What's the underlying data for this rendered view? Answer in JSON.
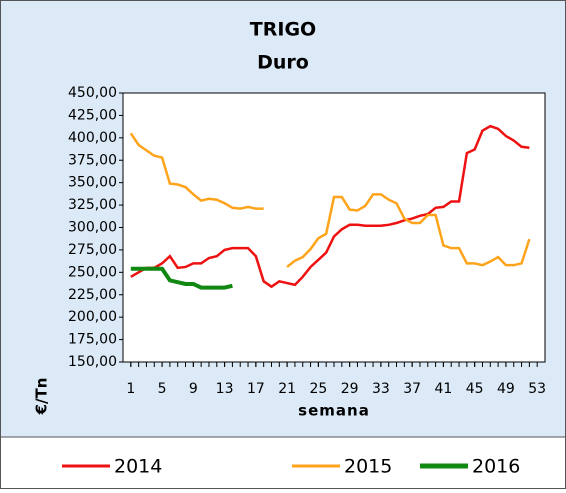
{
  "chart_data": {
    "type": "line",
    "title": "TRIGO",
    "subtitle": "Duro",
    "x_label": "semana",
    "y_label": "€/Tn",
    "x": [
      1,
      2,
      3,
      4,
      5,
      6,
      7,
      8,
      9,
      10,
      11,
      12,
      13,
      14,
      15,
      16,
      17,
      18,
      19,
      20,
      21,
      22,
      23,
      24,
      25,
      26,
      27,
      28,
      29,
      30,
      31,
      32,
      33,
      34,
      35,
      36,
      37,
      38,
      39,
      40,
      41,
      42,
      43,
      44,
      45,
      46,
      47,
      48,
      49,
      50,
      51,
      52
    ],
    "xlim": [
      0,
      54
    ],
    "xticks": [
      1,
      5,
      9,
      13,
      17,
      21,
      25,
      29,
      33,
      37,
      41,
      45,
      49,
      53
    ],
    "ylim": [
      150,
      450
    ],
    "yticks": [
      {
        "value": 150,
        "label": "150,00"
      },
      {
        "value": 175,
        "label": "175,00"
      },
      {
        "value": 200,
        "label": "200,00"
      },
      {
        "value": 225,
        "label": "225,00"
      },
      {
        "value": 250,
        "label": "250,00"
      },
      {
        "value": 275,
        "label": "275,00"
      },
      {
        "value": 300,
        "label": "300,00"
      },
      {
        "value": 325,
        "label": "325,00"
      },
      {
        "value": 350,
        "label": "350,00"
      },
      {
        "value": 375,
        "label": "375,00"
      },
      {
        "value": 400,
        "label": "400,00"
      },
      {
        "value": 425,
        "label": "425,00"
      },
      {
        "value": 450,
        "label": "450,00"
      }
    ],
    "legend": "bottom",
    "series": [
      {
        "name": "2014",
        "color": "#ee1111",
        "values": [
          245,
          250,
          255,
          255,
          260,
          268,
          255,
          256,
          260,
          260,
          266,
          268,
          275,
          277,
          277,
          277,
          268,
          240,
          234,
          240,
          238,
          236,
          245,
          256,
          264,
          272,
          290,
          298,
          303,
          303,
          302,
          302,
          302,
          303,
          305,
          308,
          310,
          313,
          315,
          322,
          323,
          329,
          329,
          383,
          387,
          408,
          413,
          410,
          402,
          397,
          390,
          389
        ]
      },
      {
        "name": "2015",
        "color": "#ffa31a",
        "values": [
          405,
          392,
          386,
          380,
          378,
          349,
          348,
          345,
          337,
          330,
          332,
          331,
          327,
          322,
          321,
          323,
          321,
          321,
          null,
          null,
          256,
          263,
          267,
          276,
          288,
          293,
          334,
          334,
          320,
          319,
          324,
          337,
          337,
          331,
          327,
          310,
          305,
          305,
          314,
          314,
          280,
          277,
          277,
          260,
          260,
          258,
          262,
          267,
          258,
          258,
          260,
          287
        ]
      },
      {
        "name": "2016",
        "color": "#118811",
        "values": [
          254,
          254,
          254,
          254,
          254,
          241,
          239,
          237,
          237,
          233,
          233,
          233,
          233,
          235,
          null,
          null,
          null,
          null,
          null,
          null,
          null,
          null,
          null,
          null,
          null,
          null,
          null,
          null,
          null,
          null,
          null,
          null,
          null,
          null,
          null,
          null,
          null,
          null,
          null,
          null,
          null,
          null,
          null,
          null,
          null,
          null,
          null,
          null,
          null,
          null,
          null,
          null
        ]
      }
    ]
  }
}
